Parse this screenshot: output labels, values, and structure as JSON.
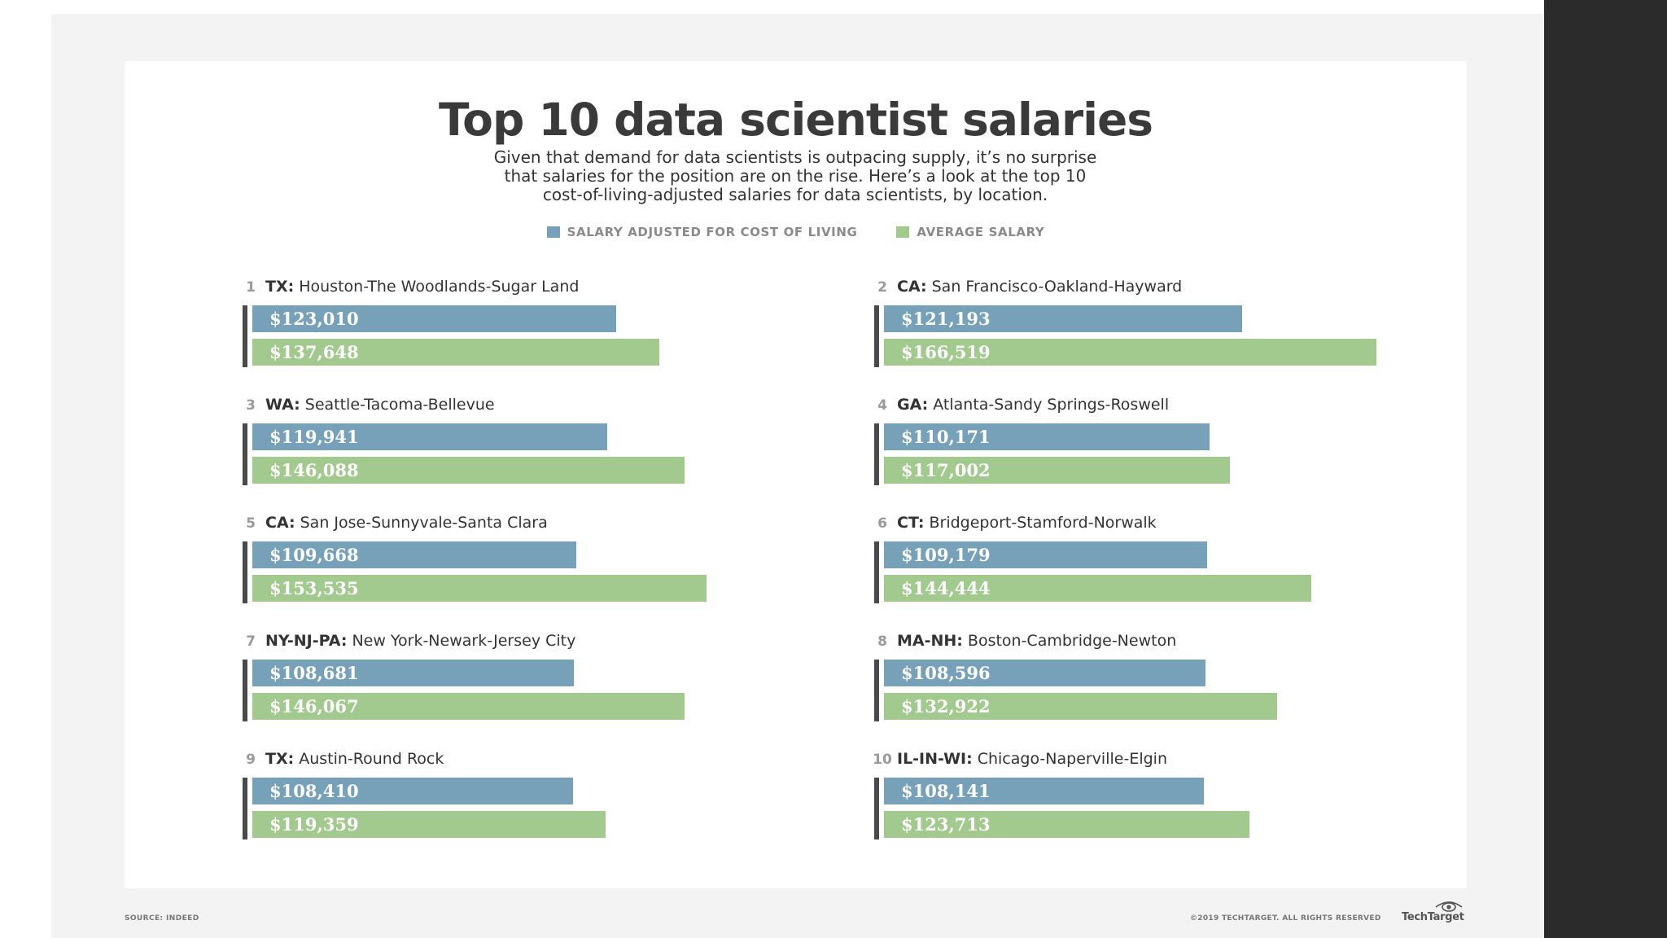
{
  "title": "Top 10 data scientist salaries",
  "subtitle_lines": [
    "Given that demand for data scientists is outpacing supply, it’s no surprise",
    "that salaries for the position are on the rise. Here’s a look at the top 10",
    "cost-of-living-adjusted salaries for data scientists, by location."
  ],
  "legend": {
    "adjusted": "SALARY ADJUSTED FOR COST OF LIVING",
    "average": "AVERAGE SALARY"
  },
  "colors": {
    "adjusted": "#77a1b9",
    "average": "#a2c98e",
    "rule": "#4a4a4a"
  },
  "source": "SOURCE: INDEED",
  "copyright": "©2019 TECHTARGET. ALL RIGHTS RESERVED",
  "brand": "TechTarget",
  "brand_icon": "eye-icon",
  "chart_data": {
    "type": "bar",
    "orientation": "horizontal",
    "grid": false,
    "legend_position": "top-center",
    "series": [
      {
        "name": "SALARY ADJUSTED FOR COST OF LIVING",
        "key": "adjusted"
      },
      {
        "name": "AVERAGE SALARY",
        "key": "average"
      }
    ],
    "entries": [
      {
        "rank": "1",
        "state": "TX:",
        "metro": "Houston-The Woodlands-Sugar Land",
        "adjusted": 123010,
        "average": 137648,
        "adjusted_label": "$123,010",
        "average_label": "$137,648"
      },
      {
        "rank": "2",
        "state": "CA:",
        "metro": "San Francisco-Oakland-Hayward",
        "adjusted": 121193,
        "average": 166519,
        "adjusted_label": "$121,193",
        "average_label": "$166,519"
      },
      {
        "rank": "3",
        "state": "WA:",
        "metro": "Seattle-Tacoma-Bellevue",
        "adjusted": 119941,
        "average": 146088,
        "adjusted_label": "$119,941",
        "average_label": "$146,088"
      },
      {
        "rank": "4",
        "state": "GA:",
        "metro": "Atlanta-Sandy Springs-Roswell",
        "adjusted": 110171,
        "average": 117002,
        "adjusted_label": "$110,171",
        "average_label": "$117,002"
      },
      {
        "rank": "5",
        "state": "CA:",
        "metro": "San Jose-Sunnyvale-Santa Clara",
        "adjusted": 109668,
        "average": 153535,
        "adjusted_label": "$109,668",
        "average_label": "$153,535"
      },
      {
        "rank": "6",
        "state": "CT:",
        "metro": "Bridgeport-Stamford-Norwalk",
        "adjusted": 109179,
        "average": 144444,
        "adjusted_label": "$109,179",
        "average_label": "$144,444"
      },
      {
        "rank": "7",
        "state": "NY-NJ-PA:",
        "metro": "New York-Newark-Jersey City",
        "adjusted": 108681,
        "average": 146067,
        "adjusted_label": "$108,681",
        "average_label": "$146,067"
      },
      {
        "rank": "8",
        "state": "MA-NH:",
        "metro": "Boston-Cambridge-Newton",
        "adjusted": 108596,
        "average": 132922,
        "adjusted_label": "$108,596",
        "average_label": "$132,922"
      },
      {
        "rank": "9",
        "state": "TX:",
        "metro": "Austin-Round Rock",
        "adjusted": 108410,
        "average": 119359,
        "adjusted_label": "$108,410",
        "average_label": "$119,359"
      },
      {
        "rank": "10",
        "state": "IL-IN-WI:",
        "metro": "Chicago-Naperville-Elgin",
        "adjusted": 108141,
        "average": 123713,
        "adjusted_label": "$108,141",
        "average_label": "$123,713"
      }
    ]
  }
}
